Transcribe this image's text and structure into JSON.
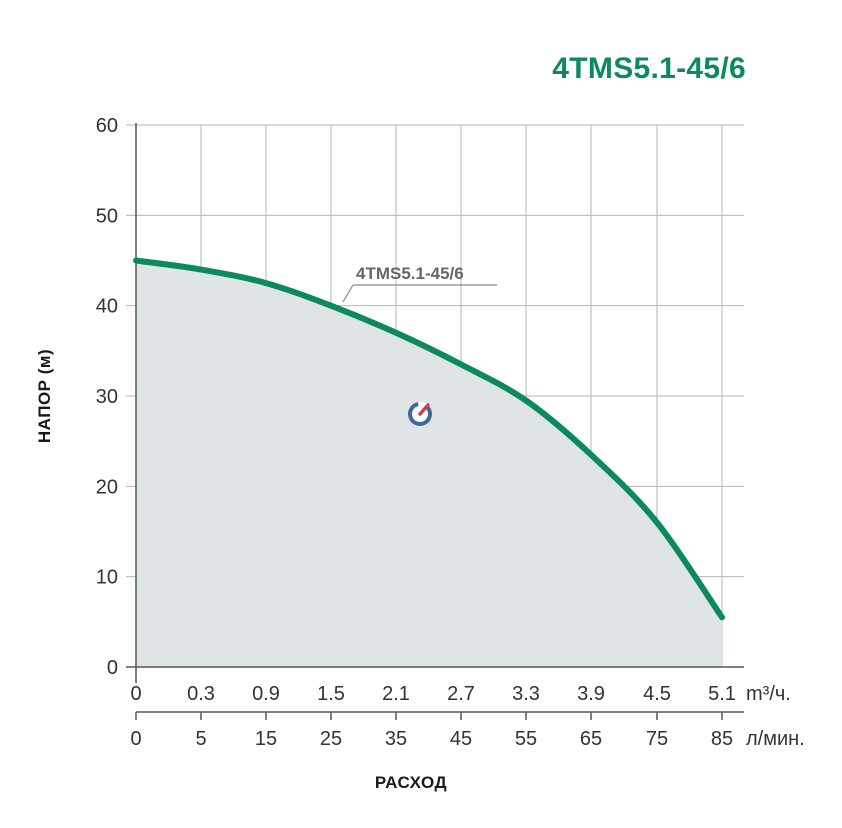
{
  "title": "4TMS5.1-45/6",
  "colors": {
    "curve": "#0b8a5f",
    "fill": "#dfe4e6",
    "grid": "#b4b4b4",
    "title": "#0b8a5f",
    "watermark_blue": "#3e6a9a",
    "watermark_red": "#d23a4f"
  },
  "watermark_icon": "gauge-logo-icon",
  "chart_data": {
    "type": "area",
    "series": [
      {
        "name": "4TMS5.1-45/6",
        "x": [
          0,
          0.3,
          0.9,
          1.5,
          2.1,
          2.7,
          3.3,
          3.9,
          4.5,
          5.1
        ],
        "y": [
          45,
          44,
          42.5,
          40,
          37,
          33.5,
          29.5,
          23.5,
          16,
          5.5
        ]
      }
    ],
    "x_ticks": [
      "0",
      "0.3",
      "0.9",
      "1.5",
      "2.1",
      "2.7",
      "3.3",
      "3.9",
      "4.5",
      "5.1"
    ],
    "x2_ticks": [
      "0",
      "5",
      "15",
      "25",
      "35",
      "45",
      "55",
      "65",
      "75",
      "85"
    ],
    "x_unit": "m³/ч.",
    "x2_unit": "л/мин.",
    "y_ticks": [
      "0",
      "10",
      "20",
      "30",
      "40",
      "50",
      "60"
    ],
    "ylim": [
      0,
      60
    ],
    "ylabel": "НАПОР (м)",
    "xlabel": "РАСХОД",
    "grid": true
  }
}
